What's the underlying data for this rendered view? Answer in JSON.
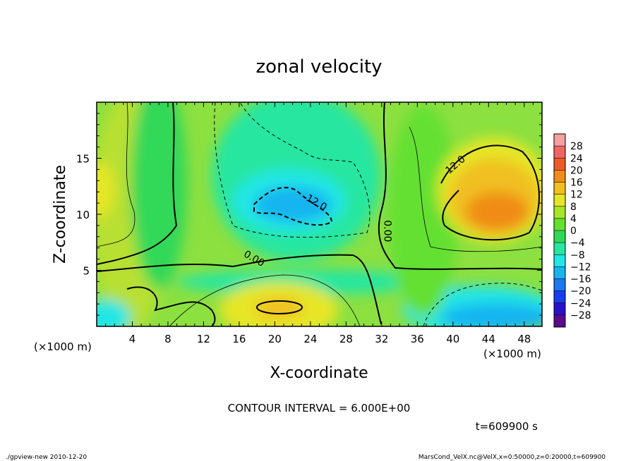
{
  "chart_data": {
    "type": "heatmap",
    "title": "zonal velocity",
    "xlabel": "X-coordinate",
    "ylabel": "Z-coordinate",
    "x_unit": "(×1000 m)",
    "y_unit": "(×1000 m)",
    "xlim": [
      0,
      50
    ],
    "ylim": [
      0,
      20
    ],
    "x_ticks": [
      4,
      8,
      12,
      16,
      20,
      24,
      28,
      32,
      36,
      40,
      44,
      48
    ],
    "y_ticks": [
      5,
      10,
      15
    ],
    "colorbar": {
      "levels": [
        28,
        24,
        20,
        16,
        12,
        8,
        4,
        0,
        -4,
        -8,
        -12,
        -16,
        -20,
        -24,
        -28
      ],
      "range": [
        -30,
        30
      ],
      "colors": [
        "#5a0a8c",
        "#2a10c8",
        "#1a3cf0",
        "#1c78f0",
        "#18b4f0",
        "#20e6e6",
        "#28e6a0",
        "#30d858",
        "#64e030",
        "#a8e628",
        "#e6e628",
        "#f0c020",
        "#f08c18",
        "#f05a28",
        "#f06464",
        "#f8a0a0"
      ]
    },
    "contour_labels": [
      {
        "text": "12.0",
        "x": 24.5,
        "y": 10.8
      },
      {
        "text": "0.00",
        "x": 17.5,
        "y": 5.8
      },
      {
        "text": "0.00",
        "x": 32.3,
        "y": 8.5
      },
      {
        "text": "12.0",
        "x": 40.5,
        "y": 14.2
      }
    ],
    "contour_interval": "CONTOUR INTERVAL = 6.000E+00",
    "time_label": "t=609900 s"
  },
  "footer": {
    "left": "./gpview-new   2010-12-20",
    "right": "MarsCond_VelX.nc@VelX,x=0:50000,z=0:20000,t=609900"
  }
}
